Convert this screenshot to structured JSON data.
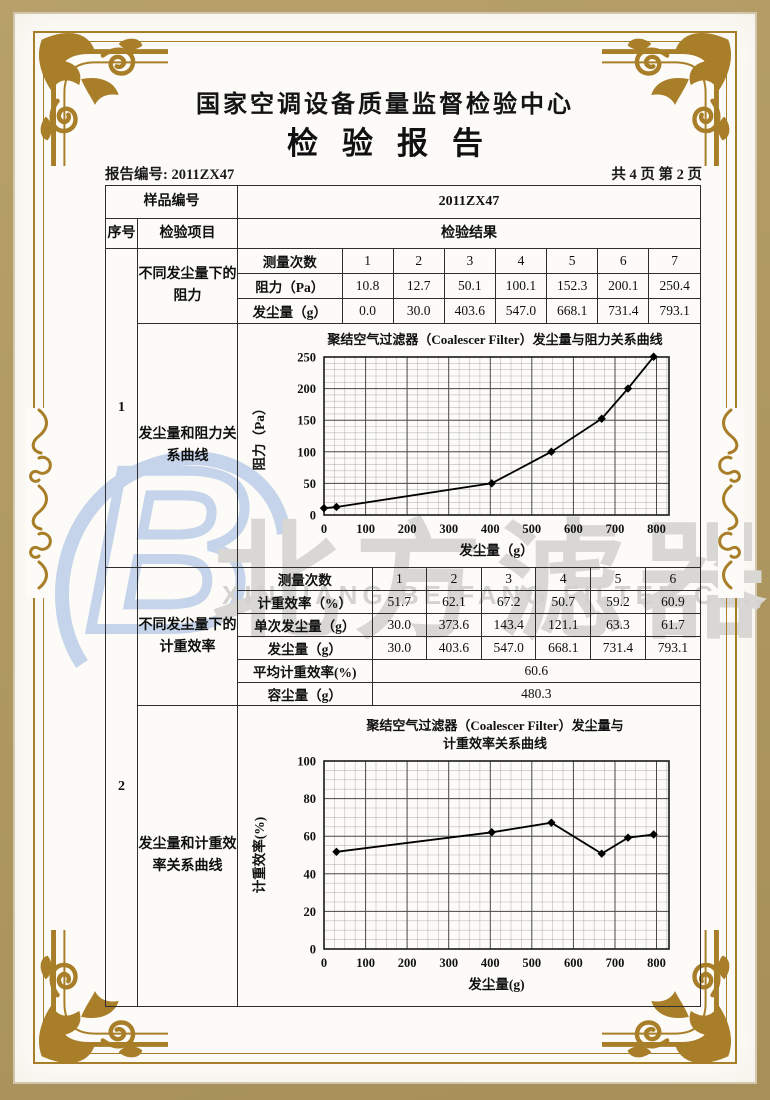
{
  "page": {
    "org_title": "国家空调设备质量监督检验中心",
    "report_title": "检验报告",
    "report_no": "报告编号: 2011ZX47",
    "page_info": "共 4 页 第 2 页"
  },
  "sample": {
    "label": "样品编号",
    "value": "2011ZX47"
  },
  "header": {
    "seq": "序号",
    "item": "检验项目",
    "result": "检验结果"
  },
  "s1": {
    "seq": "1",
    "item_resistance": "不同发尘量下的阻力",
    "item_curve": "发尘量和阻力关系曲线",
    "t": {
      "l0": "测量次数",
      "l1": "阻力（Pa）",
      "l2": "发尘量（g）",
      "counts": [
        "1",
        "2",
        "3",
        "4",
        "5",
        "6",
        "7"
      ],
      "resistance": [
        "10.8",
        "12.7",
        "50.1",
        "100.1",
        "152.3",
        "200.1",
        "250.4"
      ],
      "dust": [
        "0.0",
        "30.0",
        "403.6",
        "547.0",
        "668.1",
        "731.4",
        "793.1"
      ]
    }
  },
  "s2": {
    "seq": "2",
    "item_efficiency": "不同发尘量下的计重效率",
    "item_curve": "发尘量和计重效率关系曲线",
    "t": {
      "l0": "测量次数",
      "l1": "计重效率（%）",
      "l2": "单次发尘量（g）",
      "l3": "发尘量（g）",
      "l4": "平均计重效率(%)",
      "l5": "容尘量（g）",
      "counts": [
        "1",
        "2",
        "3",
        "4",
        "5",
        "6"
      ],
      "efficiency": [
        "51.7",
        "62.1",
        "67.2",
        "50.7",
        "59.2",
        "60.9"
      ],
      "single_dust": [
        "30.0",
        "373.6",
        "143.4",
        "121.1",
        "63.3",
        "61.7"
      ],
      "dust": [
        "30.0",
        "403.6",
        "547.0",
        "668.1",
        "731.4",
        "793.1"
      ],
      "avg": "60.6",
      "capacity": "480.3"
    }
  },
  "watermark": {
    "logo_letter": "B",
    "cn": "北方滤器",
    "en": "XINXIANG BEIFANG FILTER CO., LTD.",
    "logo_color": "#c5d4ea",
    "text_color": "#d8d7d3"
  },
  "frame": {
    "gold_color": "#a87e28",
    "edge_color": "#ab9560"
  },
  "chart_data": [
    {
      "type": "line",
      "title": "聚结空气过滤器（Coalescer Filter）发尘量与阻力关系曲线",
      "xlabel": "发尘量（g）",
      "ylabel": "阻力（Pa）",
      "x": [
        0,
        30,
        403.6,
        547.0,
        668.1,
        731.4,
        793.1
      ],
      "y": [
        10.8,
        12.7,
        50.1,
        100.1,
        152.3,
        200.1,
        250.4
      ],
      "xlim": [
        0,
        830
      ],
      "ylim": [
        0,
        250
      ],
      "xticks": [
        0,
        100,
        200,
        300,
        400,
        500,
        600,
        700,
        800
      ],
      "yticks": [
        0,
        50,
        100,
        150,
        200,
        250
      ],
      "minor_x": 25,
      "minor_y": 10,
      "grid": true,
      "legend": "none",
      "marker": "diamond"
    },
    {
      "type": "line",
      "title": "聚结空气过滤器（Coalescer Filter）发尘量与",
      "title2": "计重效率关系曲线",
      "xlabel": "发尘量(g)",
      "ylabel": "计重效率(%)",
      "x": [
        30,
        403.6,
        547.0,
        668.1,
        731.4,
        793.1
      ],
      "y": [
        51.7,
        62.1,
        67.2,
        50.7,
        59.2,
        60.9
      ],
      "xlim": [
        0,
        830
      ],
      "ylim": [
        0,
        100
      ],
      "xticks": [
        0,
        100,
        200,
        300,
        400,
        500,
        600,
        700,
        800
      ],
      "yticks": [
        0,
        20,
        40,
        60,
        80,
        100
      ],
      "minor_x": 25,
      "minor_y": 5,
      "grid": true,
      "legend": "none",
      "marker": "diamond"
    }
  ]
}
